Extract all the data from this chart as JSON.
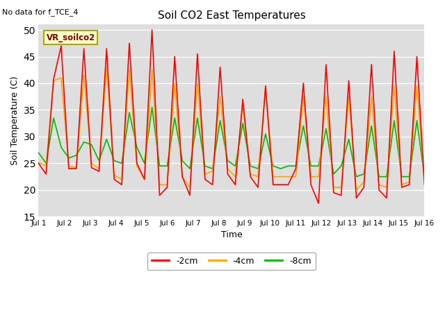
{
  "title": "Soil CO2 East Temperatures",
  "xlabel": "Time",
  "ylabel": "Soil Temperature (C)",
  "note": "No data for f_TCE_4",
  "legend_label": "VR_soilco2",
  "ylim": [
    15,
    51
  ],
  "xlim": [
    0,
    15
  ],
  "yticks": [
    15,
    20,
    25,
    30,
    35,
    40,
    45,
    50
  ],
  "xtick_labels": [
    "Jul 1",
    "Jul 2",
    "Jul 3",
    "Jul 4",
    "Jul 5",
    "Jul 6",
    "Jul 7",
    "Jul 8",
    "Jul 9",
    "Jul 10",
    "Jul 11",
    "Jul 12",
    "Jul 13",
    "Jul 14",
    "Jul 15",
    "Jul 16"
  ],
  "color_2cm": "#ff0000",
  "color_4cm": "#ffa500",
  "color_8cm": "#00bb00",
  "fig_bg": "#ffffff",
  "plot_bg": "#dedede",
  "line_width": 1.2,
  "series_2cm": [
    25.0,
    23.0,
    40.8,
    47.0,
    24.0,
    24.0,
    46.5,
    24.2,
    23.5,
    46.5,
    22.0,
    21.0,
    47.5,
    25.0,
    22.0,
    50.0,
    19.0,
    20.5,
    45.0,
    22.5,
    19.0,
    45.5,
    22.0,
    21.0,
    43.0,
    23.0,
    21.0,
    37.0,
    22.5,
    20.5,
    39.5,
    21.0,
    21.0,
    21.0,
    24.0,
    40.0,
    21.0,
    17.5,
    43.5,
    19.5,
    19.0,
    40.5,
    18.5,
    20.5,
    43.5,
    20.0,
    18.5,
    46.0,
    20.5,
    21.0,
    45.0,
    21.0
  ],
  "series_4cm": [
    25.2,
    24.5,
    40.5,
    41.0,
    24.5,
    24.2,
    41.5,
    25.0,
    24.0,
    43.0,
    22.8,
    22.0,
    42.5,
    24.5,
    22.0,
    42.5,
    21.0,
    21.0,
    40.0,
    22.5,
    20.5,
    40.0,
    23.0,
    23.5,
    37.5,
    24.0,
    22.5,
    36.0,
    23.0,
    22.5,
    39.0,
    22.5,
    22.5,
    22.5,
    22.5,
    37.5,
    22.5,
    22.5,
    37.5,
    20.5,
    20.5,
    37.5,
    20.0,
    21.5,
    37.5,
    21.0,
    20.5,
    39.5,
    21.0,
    21.5,
    39.5,
    21.5
  ],
  "series_8cm": [
    27.0,
    25.0,
    33.5,
    28.0,
    26.0,
    26.5,
    29.0,
    28.5,
    25.5,
    29.5,
    25.5,
    25.0,
    34.5,
    28.0,
    25.0,
    35.5,
    24.5,
    24.5,
    33.5,
    25.5,
    24.0,
    33.5,
    24.5,
    24.0,
    33.0,
    25.5,
    24.5,
    32.5,
    24.5,
    24.0,
    30.5,
    24.5,
    24.0,
    24.5,
    24.5,
    32.0,
    24.5,
    24.5,
    31.5,
    23.0,
    24.5,
    29.5,
    22.5,
    23.0,
    32.0,
    22.5,
    22.5,
    33.0,
    22.5,
    22.5,
    33.0,
    22.5
  ]
}
